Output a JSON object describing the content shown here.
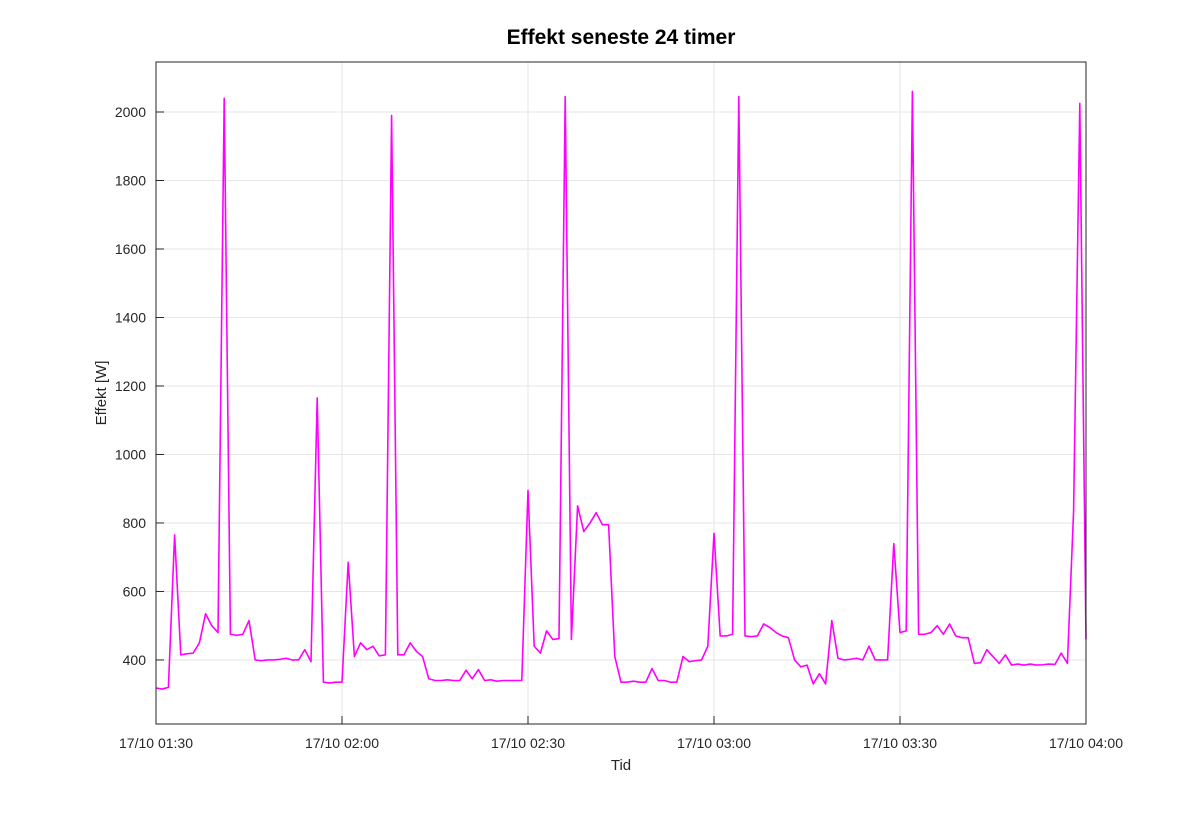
{
  "chart_data": {
    "type": "line",
    "title": "Effekt seneste 24 timer",
    "x_label": "Tid",
    "y_label": "Effekt [W]",
    "x": [
      "17/10 01:30",
      "17/10 01:31",
      "17/10 01:32",
      "17/10 01:33",
      "17/10 01:34",
      "17/10 01:35",
      "17/10 01:36",
      "17/10 01:37",
      "17/10 01:38",
      "17/10 01:39",
      "17/10 01:40",
      "17/10 01:41",
      "17/10 01:42",
      "17/10 01:43",
      "17/10 01:44",
      "17/10 01:45",
      "17/10 01:46",
      "17/10 01:47",
      "17/10 01:48",
      "17/10 01:49",
      "17/10 01:50",
      "17/10 01:51",
      "17/10 01:52",
      "17/10 01:53",
      "17/10 01:54",
      "17/10 01:55",
      "17/10 01:56",
      "17/10 01:57",
      "17/10 01:58",
      "17/10 01:59",
      "17/10 02:00",
      "17/10 02:01",
      "17/10 02:02",
      "17/10 02:03",
      "17/10 02:04",
      "17/10 02:05",
      "17/10 02:06",
      "17/10 02:07",
      "17/10 02:08",
      "17/10 02:09",
      "17/10 02:10",
      "17/10 02:11",
      "17/10 02:12",
      "17/10 02:13",
      "17/10 02:14",
      "17/10 02:15",
      "17/10 02:16",
      "17/10 02:17",
      "17/10 02:18",
      "17/10 02:19",
      "17/10 02:20",
      "17/10 02:21",
      "17/10 02:22",
      "17/10 02:23",
      "17/10 02:24",
      "17/10 02:25",
      "17/10 02:26",
      "17/10 02:27",
      "17/10 02:28",
      "17/10 02:29",
      "17/10 02:30",
      "17/10 02:31",
      "17/10 02:32",
      "17/10 02:33",
      "17/10 02:34",
      "17/10 02:35",
      "17/10 02:36",
      "17/10 02:37",
      "17/10 02:38",
      "17/10 02:39",
      "17/10 02:40",
      "17/10 02:41",
      "17/10 02:42",
      "17/10 02:43",
      "17/10 02:44",
      "17/10 02:45",
      "17/10 02:46",
      "17/10 02:47",
      "17/10 02:48",
      "17/10 02:49",
      "17/10 02:50",
      "17/10 02:51",
      "17/10 02:52",
      "17/10 02:53",
      "17/10 02:54",
      "17/10 02:55",
      "17/10 02:56",
      "17/10 02:57",
      "17/10 02:58",
      "17/10 02:59",
      "17/10 03:00",
      "17/10 03:01",
      "17/10 03:02",
      "17/10 03:03",
      "17/10 03:04",
      "17/10 03:05",
      "17/10 03:06",
      "17/10 03:07",
      "17/10 03:08",
      "17/10 03:09",
      "17/10 03:10",
      "17/10 03:11",
      "17/10 03:12",
      "17/10 03:13",
      "17/10 03:14",
      "17/10 03:15",
      "17/10 03:16",
      "17/10 03:17",
      "17/10 03:18",
      "17/10 03:19",
      "17/10 03:20",
      "17/10 03:21",
      "17/10 03:22",
      "17/10 03:23",
      "17/10 03:24",
      "17/10 03:25",
      "17/10 03:26",
      "17/10 03:27",
      "17/10 03:28",
      "17/10 03:29",
      "17/10 03:30",
      "17/10 03:31",
      "17/10 03:32",
      "17/10 03:33",
      "17/10 03:34",
      "17/10 03:35",
      "17/10 03:36",
      "17/10 03:37",
      "17/10 03:38",
      "17/10 03:39",
      "17/10 03:40",
      "17/10 03:41",
      "17/10 03:42",
      "17/10 03:43",
      "17/10 03:44",
      "17/10 03:45",
      "17/10 03:46",
      "17/10 03:47",
      "17/10 03:48",
      "17/10 03:49",
      "17/10 03:50",
      "17/10 03:51",
      "17/10 03:52",
      "17/10 03:53",
      "17/10 03:54",
      "17/10 03:55",
      "17/10 03:56",
      "17/10 03:57",
      "17/10 03:58",
      "17/10 03:59",
      "17/10 04:00"
    ],
    "series": [
      {
        "name": "Effekt",
        "color": "#ff00ff",
        "values": [
          318,
          315,
          320,
          765,
          415,
          418,
          420,
          450,
          535,
          500,
          480,
          2040,
          475,
          472,
          475,
          515,
          400,
          398,
          400,
          400,
          402,
          405,
          400,
          400,
          430,
          395,
          1165,
          335,
          333,
          335,
          335,
          685,
          410,
          450,
          430,
          440,
          412,
          415,
          1990,
          415,
          415,
          450,
          425,
          410,
          345,
          340,
          340,
          342,
          340,
          340,
          370,
          345,
          372,
          340,
          342,
          338,
          340,
          340,
          340,
          340,
          895,
          440,
          420,
          485,
          460,
          462,
          2045,
          460,
          850,
          775,
          800,
          830,
          795,
          795,
          410,
          335,
          335,
          338,
          335,
          335,
          375,
          340,
          340,
          335,
          335,
          410,
          395,
          398,
          400,
          440,
          770,
          470,
          470,
          475,
          2045,
          470,
          468,
          470,
          505,
          495,
          480,
          470,
          465,
          400,
          380,
          385,
          330,
          360,
          330,
          515,
          405,
          400,
          402,
          405,
          400,
          440,
          400,
          400,
          400,
          740,
          480,
          485,
          2060,
          475,
          475,
          480,
          500,
          475,
          505,
          470,
          465,
          465,
          390,
          392,
          430,
          410,
          390,
          415,
          385,
          388,
          385,
          388,
          385,
          386,
          388,
          387,
          420,
          390,
          835,
          2025,
          460
        ]
      }
    ],
    "xlim": [
      "17/10 01:30",
      "17/10 04:00"
    ],
    "xticks": [
      "17/10 01:30",
      "17/10 02:00",
      "17/10 02:30",
      "17/10 03:00",
      "17/10 03:30",
      "17/10 04:00"
    ],
    "ylim": [
      213,
      2146
    ],
    "yticks": [
      400,
      600,
      800,
      1000,
      1200,
      1400,
      1600,
      1800,
      2000
    ],
    "grid": true
  }
}
